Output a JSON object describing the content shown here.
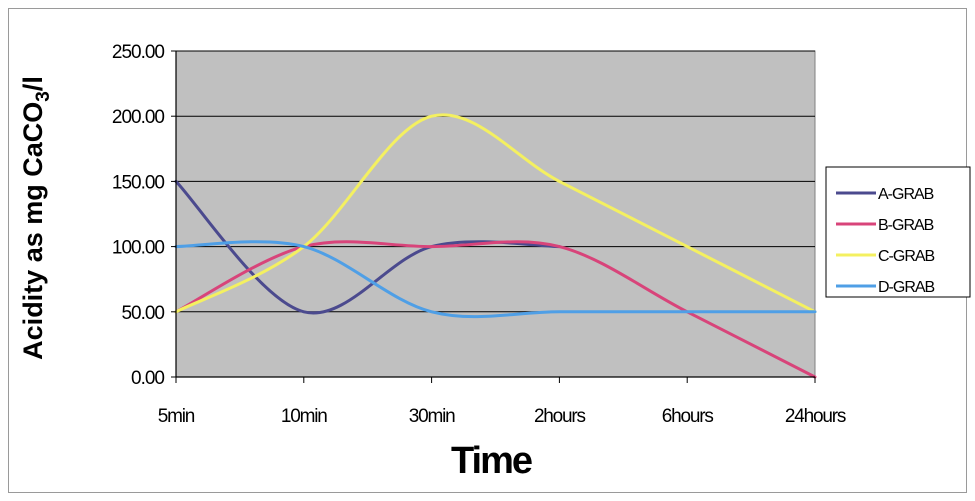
{
  "chart_data": {
    "type": "line",
    "categories": [
      "5min",
      "10min",
      "30min",
      "2hours",
      "6hours",
      "24hours"
    ],
    "ylabel_main": "Acidity as mg CaCO",
    "ylabel_sub": "3",
    "ylabel_tail": "/l",
    "xlabel": "Time",
    "ylim": [
      0,
      250
    ],
    "yticks": [
      "0.00",
      "50.00",
      "100.00",
      "150.00",
      "200.00",
      "250.00"
    ],
    "grid": true,
    "legend_position": "right",
    "plot_background": "#c0c0c0",
    "series": [
      {
        "name": "A-GRAB",
        "color": "#4b4a8e",
        "values": [
          150,
          50,
          100,
          100,
          null,
          null
        ]
      },
      {
        "name": "B-GRAB",
        "color": "#d8447a",
        "values": [
          50,
          100,
          100,
          100,
          50,
          0
        ]
      },
      {
        "name": "C-GRAB",
        "color": "#f4f060",
        "values": [
          50,
          100,
          200,
          150,
          100,
          50
        ]
      },
      {
        "name": "D-GRAB",
        "color": "#4f9fe6",
        "values": [
          100,
          100,
          50,
          50,
          50,
          50
        ]
      }
    ]
  }
}
